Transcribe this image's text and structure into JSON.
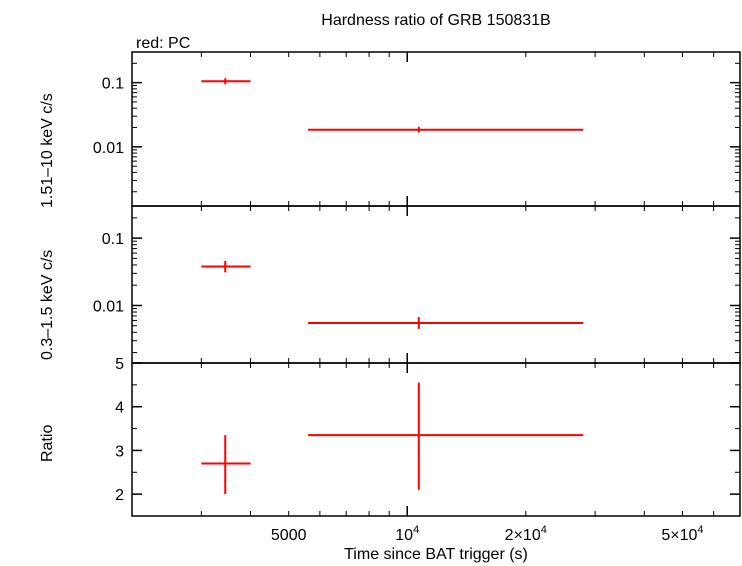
{
  "chart_data": {
    "type": "scatter",
    "title": "Hardness ratio of GRB 150831B",
    "legend": "red: PC",
    "xlabel": "Time since BAT trigger (s)",
    "x_scale": "log",
    "xlim": [
      2000,
      70000
    ],
    "x_ticks": [
      {
        "value": 5000,
        "label": "5000"
      },
      {
        "value": 10000,
        "base": "10",
        "exp": "4"
      },
      {
        "value": 20000,
        "base": "2×10",
        "exp": "4"
      },
      {
        "value": 50000,
        "base": "5×10",
        "exp": "4"
      }
    ],
    "series_color": "#ff0000",
    "panels": [
      {
        "name": "hard-band",
        "ylabel": "1.51–10 keV c/s",
        "y_scale": "log",
        "ylim": [
          0.0012,
          0.3
        ],
        "y_ticks": [
          {
            "value": 0.1,
            "label": "0.1"
          },
          {
            "value": 0.01,
            "label": "0.01"
          }
        ],
        "points": [
          {
            "x": 3450,
            "xlo": 3000,
            "xhi": 4000,
            "y": 0.105,
            "ylo": 0.094,
            "yhi": 0.117
          },
          {
            "x": 10700,
            "xlo": 5600,
            "xhi": 28000,
            "y": 0.0185,
            "ylo": 0.0167,
            "yhi": 0.0205
          }
        ]
      },
      {
        "name": "soft-band",
        "ylabel": "0.3–1.5 keV c/s",
        "y_scale": "log",
        "ylim": [
          0.0014,
          0.3
        ],
        "y_ticks": [
          {
            "value": 0.1,
            "label": "0.1"
          },
          {
            "value": 0.01,
            "label": "0.01"
          }
        ],
        "points": [
          {
            "x": 3450,
            "xlo": 3000,
            "xhi": 4000,
            "y": 0.038,
            "ylo": 0.031,
            "yhi": 0.046
          },
          {
            "x": 10700,
            "xlo": 5600,
            "xhi": 28000,
            "y": 0.0055,
            "ylo": 0.0045,
            "yhi": 0.0067
          }
        ]
      },
      {
        "name": "ratio",
        "ylabel": "Ratio",
        "y_scale": "linear",
        "ylim": [
          1.5,
          5
        ],
        "y_ticks": [
          {
            "value": 2,
            "label": "2"
          },
          {
            "value": 3,
            "label": "3"
          },
          {
            "value": 4,
            "label": "4"
          },
          {
            "value": 5,
            "label": "5"
          }
        ],
        "points": [
          {
            "x": 3450,
            "xlo": 3000,
            "xhi": 4000,
            "y": 2.7,
            "ylo": 2.0,
            "yhi": 3.35
          },
          {
            "x": 10700,
            "xlo": 5600,
            "xhi": 28000,
            "y": 3.35,
            "ylo": 2.1,
            "yhi": 4.55
          }
        ]
      }
    ]
  }
}
